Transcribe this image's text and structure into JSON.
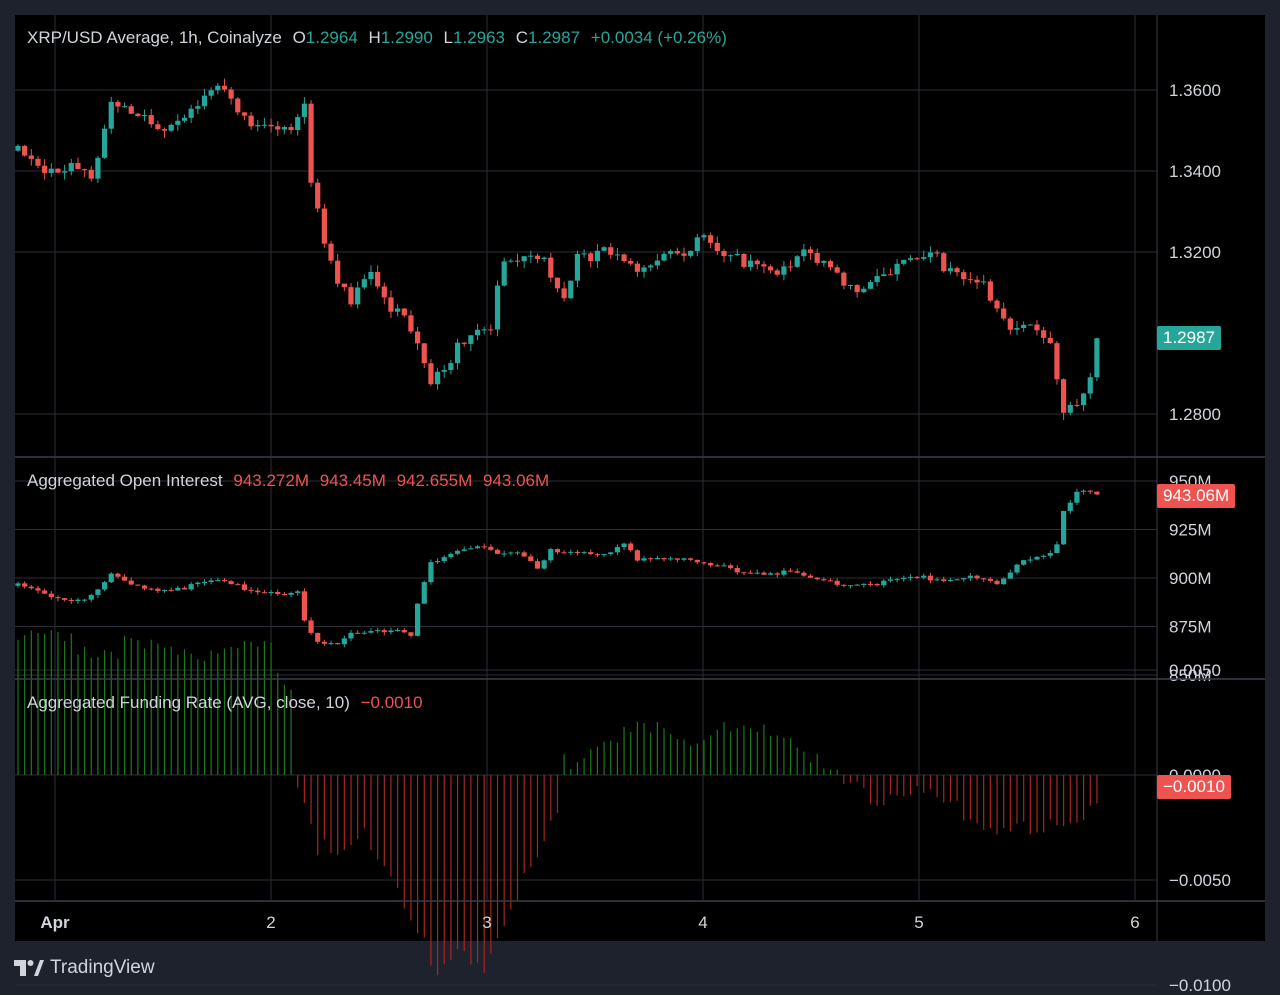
{
  "price_pane": {
    "symbol": "XRP/USD Average, 1h, Coinalyze",
    "open_label": "O",
    "open": "1.2964",
    "high_label": "H",
    "high": "1.2990",
    "low_label": "L",
    "low": "1.2963",
    "close_label": "C",
    "close": "1.2987",
    "change": "+0.0034 (+0.26%)",
    "last_tag": "1.2987"
  },
  "oi_pane": {
    "title": "Aggregated Open Interest",
    "o": "943.272M",
    "h": "943.45M",
    "l": "942.655M",
    "c": "943.06M",
    "last_tag": "943.06M"
  },
  "fr_pane": {
    "title": "Aggregated Funding Rate (AVG, close, 10)",
    "value": "−0.0010",
    "last_tag": "−0.0010"
  },
  "brand": "TradingView",
  "colors": {
    "up": "#26a69a",
    "down": "#ef5350",
    "fr_up": "#1b7a1b",
    "fr_down": "#a82525",
    "grid": "#2a2e39",
    "background": "#000000"
  },
  "chart_data": [
    {
      "type": "candlestick",
      "title": "XRP/USD Average, 1h, Coinalyze",
      "x_ticks": [
        "Apr",
        "2",
        "3",
        "4",
        "5",
        "6"
      ],
      "y_ticks": [
        "1.2800",
        "1.3200",
        "1.3400",
        "1.3600"
      ],
      "ylim": [
        1.272,
        1.372
      ],
      "interval_hours": 1,
      "anchors": [
        {
          "t": 0,
          "v": 1.345
        },
        {
          "t": 4,
          "v": 1.338
        },
        {
          "t": 8,
          "v": 1.343
        },
        {
          "t": 11,
          "v": 1.339
        },
        {
          "t": 14,
          "v": 1.356
        },
        {
          "t": 18,
          "v": 1.353
        },
        {
          "t": 22,
          "v": 1.352
        },
        {
          "t": 26,
          "v": 1.356
        },
        {
          "t": 30,
          "v": 1.36
        },
        {
          "t": 34,
          "v": 1.352
        },
        {
          "t": 38,
          "v": 1.353
        },
        {
          "t": 41,
          "v": 1.351
        },
        {
          "t": 43,
          "v": 1.356
        },
        {
          "t": 44,
          "v": 1.337
        },
        {
          "t": 46,
          "v": 1.321
        },
        {
          "t": 48,
          "v": 1.311
        },
        {
          "t": 50,
          "v": 1.309
        },
        {
          "t": 53,
          "v": 1.317
        },
        {
          "t": 56,
          "v": 1.307
        },
        {
          "t": 59,
          "v": 1.3
        },
        {
          "t": 62,
          "v": 1.287
        },
        {
          "t": 64,
          "v": 1.29
        },
        {
          "t": 66,
          "v": 1.298
        },
        {
          "t": 69,
          "v": 1.302
        },
        {
          "t": 71,
          "v": 1.303
        },
        {
          "t": 73,
          "v": 1.317
        },
        {
          "t": 76,
          "v": 1.318
        },
        {
          "t": 79,
          "v": 1.317
        },
        {
          "t": 82,
          "v": 1.309
        },
        {
          "t": 84,
          "v": 1.32
        },
        {
          "t": 88,
          "v": 1.319
        },
        {
          "t": 91,
          "v": 1.317
        },
        {
          "t": 93,
          "v": 1.313
        },
        {
          "t": 96,
          "v": 1.32
        },
        {
          "t": 100,
          "v": 1.321
        },
        {
          "t": 103,
          "v": 1.322
        },
        {
          "t": 106,
          "v": 1.318
        },
        {
          "t": 110,
          "v": 1.318
        },
        {
          "t": 114,
          "v": 1.316
        },
        {
          "t": 118,
          "v": 1.319
        },
        {
          "t": 122,
          "v": 1.315
        },
        {
          "t": 126,
          "v": 1.312
        },
        {
          "t": 130,
          "v": 1.315
        },
        {
          "t": 134,
          "v": 1.318
        },
        {
          "t": 138,
          "v": 1.318
        },
        {
          "t": 142,
          "v": 1.315
        },
        {
          "t": 145,
          "v": 1.313
        },
        {
          "t": 147,
          "v": 1.305
        },
        {
          "t": 149,
          "v": 1.3
        },
        {
          "t": 152,
          "v": 1.3
        },
        {
          "t": 155,
          "v": 1.299
        },
        {
          "t": 157,
          "v": 1.282
        },
        {
          "t": 159,
          "v": 1.284
        },
        {
          "t": 161,
          "v": 1.287
        },
        {
          "t": 162,
          "v": 1.2987
        }
      ]
    },
    {
      "type": "candlestick",
      "title": "Aggregated Open Interest",
      "y_ticks": [
        "850M",
        "875M",
        "900M",
        "925M",
        "950M"
      ],
      "ylim": [
        848,
        958
      ],
      "units": "M",
      "anchors": [
        {
          "t": 0,
          "v": 896
        },
        {
          "t": 4,
          "v": 892
        },
        {
          "t": 8,
          "v": 889
        },
        {
          "t": 11,
          "v": 890
        },
        {
          "t": 14,
          "v": 901
        },
        {
          "t": 18,
          "v": 895
        },
        {
          "t": 22,
          "v": 894
        },
        {
          "t": 26,
          "v": 896
        },
        {
          "t": 30,
          "v": 898
        },
        {
          "t": 34,
          "v": 895
        },
        {
          "t": 38,
          "v": 893
        },
        {
          "t": 41,
          "v": 891
        },
        {
          "t": 42,
          "v": 893
        },
        {
          "t": 43,
          "v": 877
        },
        {
          "t": 45,
          "v": 866
        },
        {
          "t": 48,
          "v": 866
        },
        {
          "t": 50,
          "v": 872
        },
        {
          "t": 54,
          "v": 874
        },
        {
          "t": 57,
          "v": 872
        },
        {
          "t": 59,
          "v": 870
        },
        {
          "t": 60,
          "v": 886
        },
        {
          "t": 62,
          "v": 908
        },
        {
          "t": 65,
          "v": 913
        },
        {
          "t": 68,
          "v": 916
        },
        {
          "t": 70,
          "v": 917
        },
        {
          "t": 72,
          "v": 912
        },
        {
          "t": 75,
          "v": 913
        },
        {
          "t": 78,
          "v": 905
        },
        {
          "t": 80,
          "v": 915
        },
        {
          "t": 84,
          "v": 913
        },
        {
          "t": 88,
          "v": 911
        },
        {
          "t": 91,
          "v": 917
        },
        {
          "t": 93,
          "v": 910
        },
        {
          "t": 97,
          "v": 911
        },
        {
          "t": 101,
          "v": 908
        },
        {
          "t": 105,
          "v": 906
        },
        {
          "t": 110,
          "v": 903
        },
        {
          "t": 115,
          "v": 903
        },
        {
          "t": 119,
          "v": 900
        },
        {
          "t": 123,
          "v": 897
        },
        {
          "t": 127,
          "v": 897
        },
        {
          "t": 131,
          "v": 898
        },
        {
          "t": 135,
          "v": 900
        },
        {
          "t": 140,
          "v": 899
        },
        {
          "t": 143,
          "v": 902
        },
        {
          "t": 147,
          "v": 896
        },
        {
          "t": 150,
          "v": 906
        },
        {
          "t": 152,
          "v": 910
        },
        {
          "t": 155,
          "v": 914
        },
        {
          "t": 156,
          "v": 918
        },
        {
          "t": 157,
          "v": 935
        },
        {
          "t": 159,
          "v": 945
        },
        {
          "t": 161,
          "v": 944
        },
        {
          "t": 162,
          "v": 943.06
        }
      ]
    },
    {
      "type": "histogram",
      "title": "Aggregated Funding Rate (AVG, close, 10)",
      "y_ticks": [
        "0.0050",
        "0.0000",
        "−0.0050",
        "−0.0100"
      ],
      "ylim": [
        -0.0115,
        0.007
      ],
      "anchors": [
        {
          "t": 0,
          "v": 0.0065
        },
        {
          "t": 10,
          "v": 0.0062
        },
        {
          "t": 20,
          "v": 0.006
        },
        {
          "t": 30,
          "v": 0.006
        },
        {
          "t": 38,
          "v": 0.0058
        },
        {
          "t": 41,
          "v": 0.0042
        },
        {
          "t": 42,
          "v": 0.0
        },
        {
          "t": 43,
          "v": -0.001
        },
        {
          "t": 45,
          "v": -0.0035
        },
        {
          "t": 48,
          "v": -0.004
        },
        {
          "t": 52,
          "v": -0.003
        },
        {
          "t": 56,
          "v": -0.0045
        },
        {
          "t": 60,
          "v": -0.0075
        },
        {
          "t": 63,
          "v": -0.01
        },
        {
          "t": 66,
          "v": -0.0085
        },
        {
          "t": 70,
          "v": -0.009
        },
        {
          "t": 73,
          "v": -0.007
        },
        {
          "t": 76,
          "v": -0.005
        },
        {
          "t": 79,
          "v": -0.0035
        },
        {
          "t": 81,
          "v": -0.002
        },
        {
          "t": 82,
          "v": 0.0005
        },
        {
          "t": 85,
          "v": 0.001
        },
        {
          "t": 88,
          "v": 0.002
        },
        {
          "t": 93,
          "v": 0.002
        },
        {
          "t": 98,
          "v": 0.002
        },
        {
          "t": 103,
          "v": 0.002
        },
        {
          "t": 108,
          "v": 0.002
        },
        {
          "t": 116,
          "v": 0.002
        },
        {
          "t": 119,
          "v": 0.001
        },
        {
          "t": 121,
          "v": 0.0002
        },
        {
          "t": 124,
          "v": -0.0005
        },
        {
          "t": 128,
          "v": -0.001
        },
        {
          "t": 134,
          "v": -0.0008
        },
        {
          "t": 139,
          "v": -0.0015
        },
        {
          "t": 143,
          "v": -0.002
        },
        {
          "t": 149,
          "v": -0.0025
        },
        {
          "t": 153,
          "v": -0.003
        },
        {
          "t": 156,
          "v": -0.0025
        },
        {
          "t": 159,
          "v": -0.002
        },
        {
          "t": 162,
          "v": -0.001
        }
      ]
    }
  ]
}
